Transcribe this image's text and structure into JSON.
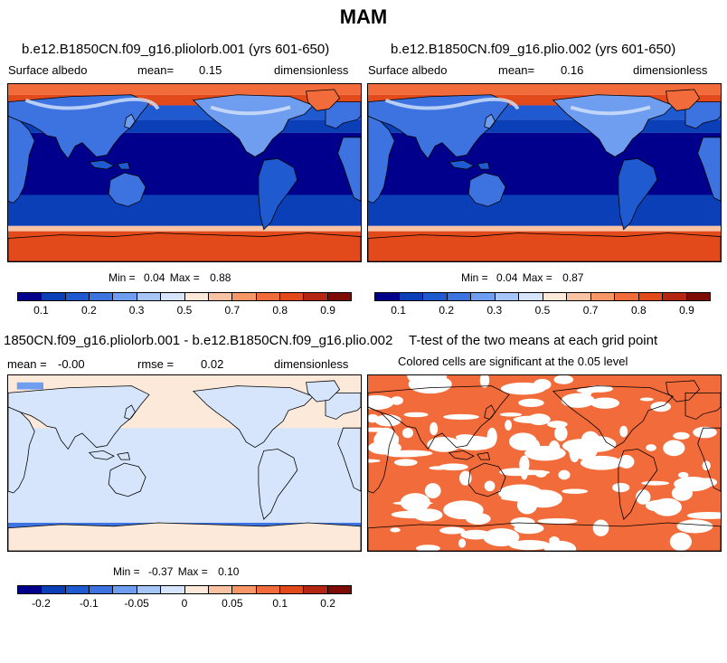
{
  "figure_title": "MAM",
  "panels": [
    {
      "title": "b.e12.B1850CN.f09_g16.pliolorb.001 (yrs 601-650)",
      "variable": "Surface albedo",
      "mean_label": "mean=",
      "mean": "0.15",
      "units": "dimensionless",
      "min_label": "Min =",
      "min": "0.04",
      "max_label": "Max =",
      "max": "0.88"
    },
    {
      "title": "b.e12.B1850CN.f09_g16.plio.002 (yrs 601-650)",
      "variable": "Surface albedo",
      "mean_label": "mean=",
      "mean": "0.16",
      "units": "dimensionless",
      "min_label": "Min =",
      "min": "0.04",
      "max_label": "Max =",
      "max": "0.87"
    },
    {
      "title": "1850CN.f09_g16.pliolorb.001 - b.e12.B1850CN.f09_g16.plio.002",
      "mean_label": "mean =",
      "mean": "-0.00",
      "rmse_label": "rmse =",
      "rmse": "0.02",
      "units": "dimensionless",
      "min_label": "Min =",
      "min": "-0.37",
      "max_label": "Max =",
      "max": "0.10"
    },
    {
      "title": "T-test of the two means at each grid point",
      "subtitle": "Colored cells are significant at the 0.05 level"
    }
  ],
  "colorbar_abs": {
    "colors": [
      "#00008c",
      "#0b3fb7",
      "#1f5ad1",
      "#3d73e0",
      "#6f9df0",
      "#a6c6f7",
      "#d6e5fb",
      "#fde9d9",
      "#f9c3a3",
      "#f79667",
      "#f26b3a",
      "#e24a1c",
      "#b52612",
      "#7f0c04"
    ],
    "labels": [
      "0.1",
      "0.2",
      "0.3",
      "0.5",
      "0.7",
      "0.8",
      "0.9"
    ]
  },
  "colorbar_diff": {
    "colors": [
      "#00008c",
      "#0b3fb7",
      "#1f5ad1",
      "#3d73e0",
      "#6f9df0",
      "#a6c6f7",
      "#d6e5fb",
      "#fde9d9",
      "#f9c3a3",
      "#f79667",
      "#f26b3a",
      "#e24a1c",
      "#b52612",
      "#7f0c04"
    ],
    "labels": [
      "-0.2",
      "-0.1",
      "-0.05",
      "0",
      "0.05",
      "0.1",
      "0.2"
    ]
  },
  "chart_data": [
    {
      "type": "heatmap",
      "title": "b.e12.B1850CN.f09_g16.pliolorb.001 (yrs 601-650)",
      "variable": "Surface albedo",
      "mean": 0.15,
      "min": 0.04,
      "max": 0.88,
      "units": "dimensionless",
      "contour_levels": [
        0.05,
        0.1,
        0.15,
        0.2,
        0.25,
        0.3,
        0.4,
        0.5,
        0.6,
        0.7,
        0.75,
        0.8,
        0.85
      ]
    },
    {
      "type": "heatmap",
      "title": "b.e12.B1850CN.f09_g16.plio.002 (yrs 601-650)",
      "variable": "Surface albedo",
      "mean": 0.16,
      "min": 0.04,
      "max": 0.87,
      "units": "dimensionless",
      "contour_levels": [
        0.05,
        0.1,
        0.15,
        0.2,
        0.25,
        0.3,
        0.4,
        0.5,
        0.6,
        0.7,
        0.75,
        0.8,
        0.85
      ]
    },
    {
      "type": "heatmap",
      "title": "1850CN.f09_g16.pliolorb.001 - b.e12.B1850CN.f09_g16.plio.002",
      "mean": -0.0,
      "rmse": 0.02,
      "min": -0.37,
      "max": 0.1,
      "units": "dimensionless",
      "contour_levels": [
        -0.3,
        -0.2,
        -0.15,
        -0.1,
        -0.07,
        -0.05,
        -0.02,
        0,
        0.02,
        0.05,
        0.07,
        0.1,
        0.15,
        0.2,
        0.3
      ]
    },
    {
      "type": "heatmap",
      "title": "T-test of the two means at each grid point",
      "subtitle": "Colored cells are significant at the 0.05 level",
      "significance_level": 0.05
    }
  ]
}
